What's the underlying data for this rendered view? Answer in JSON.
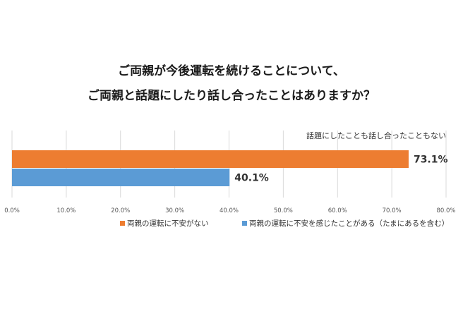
{
  "chart_data": {
    "type": "bar",
    "orientation": "horizontal",
    "title_line1": "ご両親が今後運転を続けることについて、",
    "title_line2": "ご両親と話題にしたり話し合ったことはありますか？",
    "category_label": "話題にしたことも話し合ったこともない",
    "series": [
      {
        "name": "両親の運転に不安がない",
        "values": [
          73.1
        ],
        "label": "73.1%",
        "color": "#ED7D31"
      },
      {
        "name": "両親の運転に不安を感じたことがある（たまにあるを含む）",
        "values": [
          40.1
        ],
        "label": "40.1%",
        "color": "#5B9BD5"
      }
    ],
    "xlim": [
      0,
      80
    ],
    "xticks": [
      0,
      10,
      20,
      30,
      40,
      50,
      60,
      70,
      80
    ],
    "xtick_labels": [
      "0.0%",
      "10.0%",
      "20.0%",
      "30.0%",
      "40.0%",
      "50.0%",
      "60.0%",
      "70.0%",
      "80.0%"
    ],
    "grid": "vertical",
    "legend_position": "bottom"
  }
}
